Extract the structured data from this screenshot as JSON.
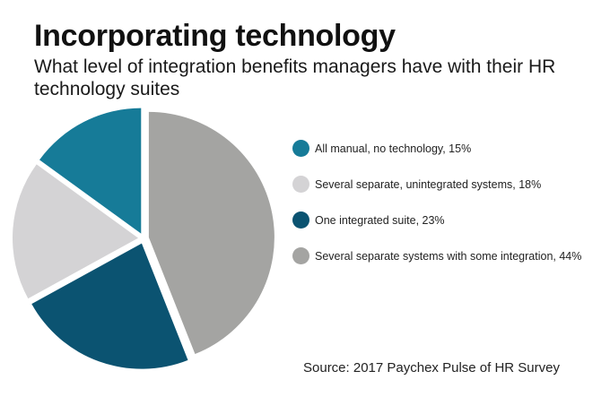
{
  "header": {
    "title": "Incorporating technology",
    "subtitle": "What level of integration benefits managers have with their HR technology suites"
  },
  "chart_data": {
    "type": "pie",
    "title": "Incorporating technology",
    "subtitle": "What level of integration benefits managers have with their HR technology suites",
    "slices": [
      {
        "label": "All manual, no technology, 15%",
        "value": 15,
        "color": "#167b98"
      },
      {
        "label": "Several separate, unintegrated systems, 18%",
        "value": 18,
        "color": "#d4d3d5"
      },
      {
        "label": "One integrated suite, 23%",
        "value": 23,
        "color": "#0b5371"
      },
      {
        "label": "Several separate systems with some integration, 44%",
        "value": 44,
        "color": "#a4a4a2"
      }
    ],
    "legend_position": "right"
  },
  "footer": {
    "source": "Source: 2017 Paychex Pulse of HR Survey"
  }
}
